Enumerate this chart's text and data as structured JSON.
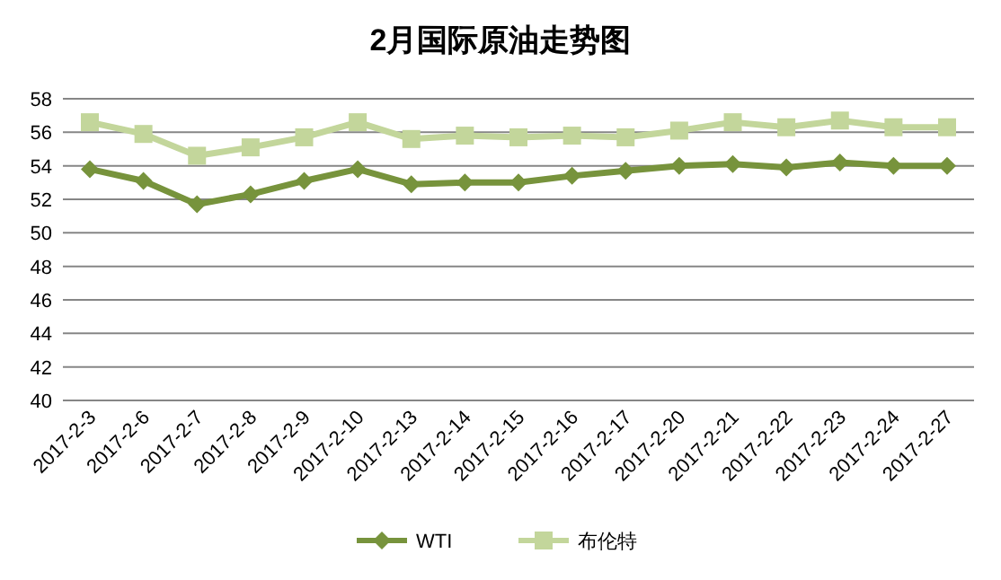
{
  "chart_data": {
    "type": "line",
    "title": "2月国际原油走势图",
    "categories": [
      "2017-2-3",
      "2017-2-6",
      "2017-2-7",
      "2017-2-8",
      "2017-2-9",
      "2017-2-10",
      "2017-2-13",
      "2017-2-14",
      "2017-2-15",
      "2017-2-16",
      "2017-2-17",
      "2017-2-20",
      "2017-2-21",
      "2017-2-22",
      "2017-2-23",
      "2017-2-24",
      "2017-2-27"
    ],
    "series": [
      {
        "name": "WTI",
        "color": "#77933c",
        "marker": "diamond",
        "values": [
          53.8,
          53.1,
          51.7,
          52.3,
          53.1,
          53.8,
          52.9,
          53.0,
          53.0,
          53.4,
          53.7,
          54.0,
          54.1,
          53.9,
          54.2,
          54.0,
          54.0
        ]
      },
      {
        "name": "布伦特",
        "color": "#c3d69b",
        "marker": "square",
        "values": [
          56.6,
          55.9,
          54.6,
          55.1,
          55.7,
          56.6,
          55.6,
          55.8,
          55.7,
          55.8,
          55.7,
          56.1,
          56.6,
          56.3,
          56.7,
          56.3,
          56.3
        ]
      }
    ],
    "ylim": [
      40,
      58
    ],
    "yticks": [
      40,
      42,
      44,
      46,
      48,
      50,
      52,
      54,
      56,
      58
    ],
    "grid": "y",
    "legend": "bottom"
  }
}
